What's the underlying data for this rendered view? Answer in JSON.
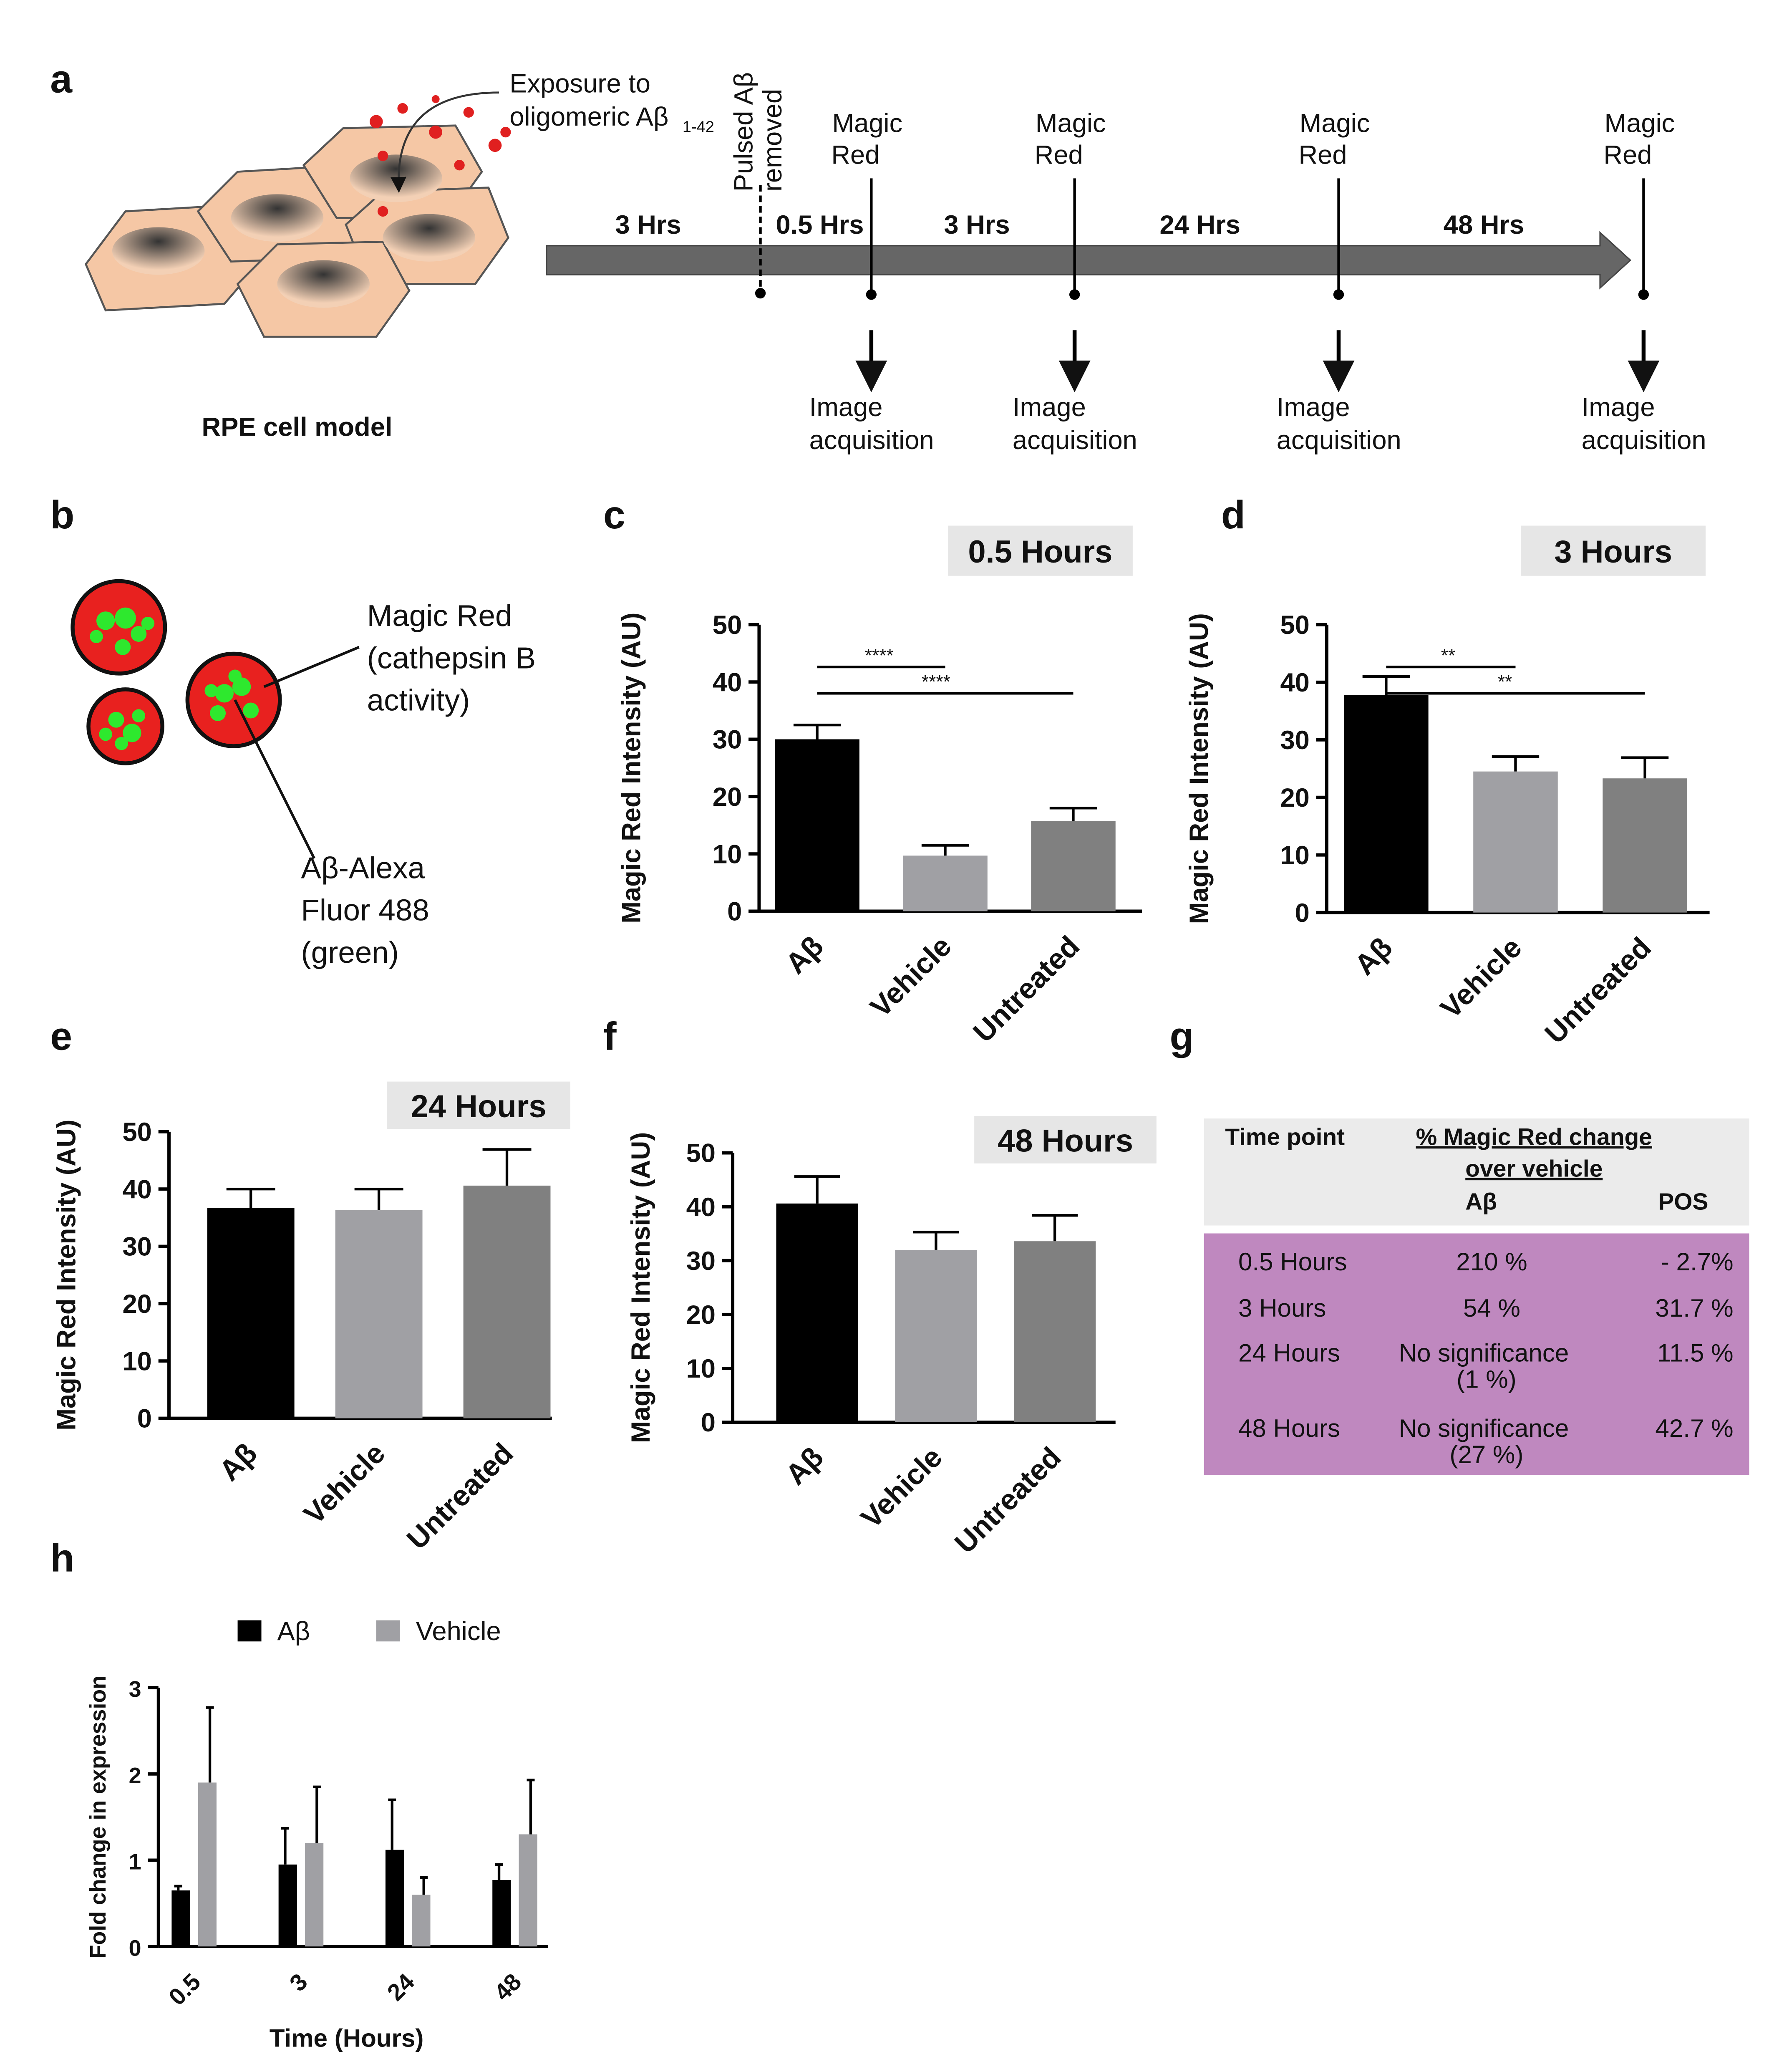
{
  "figure": {
    "a": {
      "panel_label": "a",
      "cell_label": "RPE cell model",
      "exposure_line1": "Exposure to",
      "exposure_line2": "oligomeric Aβ",
      "exposure_subscript": "1-42",
      "pulse_line1": "Pulsed Aβ",
      "pulse_line2": "removed",
      "intervals": [
        "3 Hrs",
        "0.5 Hrs",
        "3 Hrs",
        "24 Hrs",
        "48 Hrs"
      ],
      "timepoints": [
        {
          "label": [
            "Magic",
            "Red"
          ],
          "output": [
            "Image",
            "acquisition"
          ]
        },
        {
          "label": [
            "Magic",
            "Red"
          ],
          "output": [
            "Image",
            "acquisition"
          ]
        },
        {
          "label": [
            "Magic",
            "Red"
          ],
          "output": [
            "Image",
            "acquisition"
          ]
        },
        {
          "label": [
            "Magic",
            "Red"
          ],
          "output": [
            "Image",
            "acquisition"
          ]
        }
      ]
    },
    "b": {
      "panel_label": "b",
      "red_label": [
        "Magic Red",
        "(cathepsin B",
        "activity)"
      ],
      "green_label": [
        "Aβ-Alexa",
        "Fluor 488",
        "(green)"
      ]
    },
    "g": {
      "panel_label": "g",
      "header": [
        "Time point",
        "% Magic Red change",
        "over vehicle",
        "Aβ",
        "POS"
      ],
      "rows": [
        [
          "0.5 Hours",
          "210 %",
          "- 2.7%"
        ],
        [
          "3 Hours",
          "54 %",
          "31.7 %"
        ],
        [
          "24 Hours",
          "No significance",
          "(1 %)",
          "11.5 %"
        ],
        [
          "48 Hours",
          "No significance",
          "(27 %)",
          "42.7 %"
        ]
      ]
    }
  },
  "chart_data": [
    {
      "type": "bar",
      "panel_label": "c",
      "title": "0.5 Hours",
      "y_label": "Magic Red Intensity (AU)",
      "categories": [
        "Aβ",
        "Vehicle",
        "Untreated"
      ],
      "values": [
        30,
        9.7,
        15.7
      ],
      "errors": [
        2.5,
        1.8,
        2.3
      ],
      "colors": [
        "#000000",
        "#a0a0a4",
        "#808080"
      ],
      "ylim": [
        0,
        50
      ],
      "yticks": [
        0,
        10,
        20,
        30,
        40,
        50
      ],
      "significance": [
        {
          "pair": [
            "Aβ",
            "Vehicle"
          ],
          "label": "****"
        },
        {
          "pair": [
            "Aβ",
            "Untreated"
          ],
          "label": "****"
        }
      ]
    },
    {
      "type": "bar",
      "panel_label": "d",
      "title": "3 Hours",
      "y_label": "Magic Red Intensity (AU)",
      "categories": [
        "Aβ",
        "Vehicle",
        "Untreated"
      ],
      "values": [
        37.8,
        24.5,
        23.3
      ],
      "errors": [
        3.2,
        2.6,
        3.6
      ],
      "colors": [
        "#000000",
        "#a0a0a4",
        "#808080"
      ],
      "ylim": [
        0,
        50
      ],
      "yticks": [
        0,
        10,
        20,
        30,
        40,
        50
      ],
      "significance": [
        {
          "pair": [
            "Aβ",
            "Vehicle"
          ],
          "label": "**"
        },
        {
          "pair": [
            "Aβ",
            "Untreated"
          ],
          "label": "**"
        }
      ]
    },
    {
      "type": "bar",
      "panel_label": "e",
      "title": "24 Hours",
      "y_label": "Magic Red Intensity (AU)",
      "categories": [
        "Aβ",
        "Vehicle",
        "Untreated"
      ],
      "values": [
        36.7,
        36.3,
        40.6
      ],
      "errors": [
        3.3,
        3.7,
        6.3
      ],
      "colors": [
        "#000000",
        "#a0a0a4",
        "#808080"
      ],
      "ylim": [
        0,
        50
      ],
      "yticks": [
        0,
        10,
        20,
        30,
        40,
        50
      ]
    },
    {
      "type": "bar",
      "panel_label": "f",
      "title": "48 Hours",
      "y_label": "Magic Red Intensity (AU)",
      "categories": [
        "Aβ",
        "Vehicle",
        "Untreated"
      ],
      "values": [
        40.6,
        32,
        33.6
      ],
      "errors": [
        5,
        3.3,
        4.8
      ],
      "colors": [
        "#000000",
        "#a0a0a4",
        "#808080"
      ],
      "ylim": [
        0,
        50
      ],
      "yticks": [
        0,
        10,
        20,
        30,
        40,
        50
      ]
    },
    {
      "type": "grouped_bar",
      "panel_label": "h",
      "x_label": "Time (Hours)",
      "y_label": "Fold change in expression",
      "categories": [
        "0.5",
        "3",
        "24",
        "48"
      ],
      "series": [
        {
          "name": "Aβ",
          "color": "#000000",
          "values": [
            0.65,
            0.95,
            1.12,
            0.77
          ],
          "errors": [
            0.05,
            0.42,
            0.58,
            0.18
          ]
        },
        {
          "name": "Vehicle",
          "color": "#a0a0a4",
          "values": [
            1.9,
            1.2,
            0.6,
            1.3
          ],
          "errors": [
            0.87,
            0.65,
            0.2,
            0.63
          ]
        }
      ],
      "ylim": [
        0,
        3
      ],
      "yticks": [
        0,
        1,
        2,
        3
      ]
    }
  ]
}
